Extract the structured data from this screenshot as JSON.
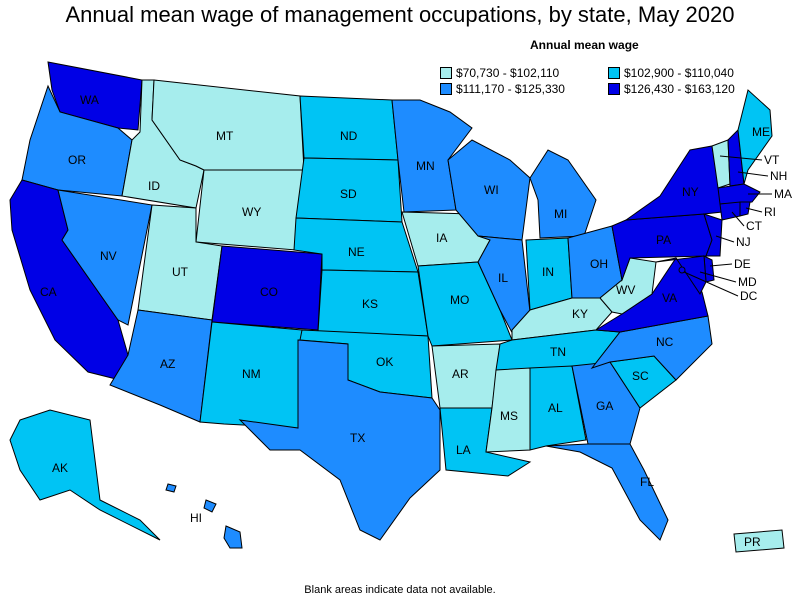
{
  "title": "Annual mean wage of management occupations, by state, May 2020",
  "legend": {
    "title": "Annual mean wage",
    "items": [
      {
        "label": "$70,730 - $102,110",
        "color": "#a6eded"
      },
      {
        "label": "$102,900 - $110,040",
        "color": "#00c4f4"
      },
      {
        "label": "$111,170 - $125,330",
        "color": "#1e8cff"
      },
      {
        "label": "$126,430 - $163,120",
        "color": "#0000e6"
      }
    ]
  },
  "footnote": "Blank areas indicate data not available.",
  "states": [
    {
      "code": "WA",
      "tier": 3
    },
    {
      "code": "OR",
      "tier": 2
    },
    {
      "code": "CA",
      "tier": 3
    },
    {
      "code": "ID",
      "tier": 0
    },
    {
      "code": "NV",
      "tier": 2
    },
    {
      "code": "MT",
      "tier": 0
    },
    {
      "code": "WY",
      "tier": 0
    },
    {
      "code": "UT",
      "tier": 0
    },
    {
      "code": "AZ",
      "tier": 2
    },
    {
      "code": "CO",
      "tier": 3
    },
    {
      "code": "NM",
      "tier": 1
    },
    {
      "code": "ND",
      "tier": 1
    },
    {
      "code": "SD",
      "tier": 1
    },
    {
      "code": "NE",
      "tier": 1
    },
    {
      "code": "KS",
      "tier": 1
    },
    {
      "code": "OK",
      "tier": 1
    },
    {
      "code": "TX",
      "tier": 2
    },
    {
      "code": "MN",
      "tier": 2
    },
    {
      "code": "IA",
      "tier": 0
    },
    {
      "code": "MO",
      "tier": 1
    },
    {
      "code": "AR",
      "tier": 0
    },
    {
      "code": "LA",
      "tier": 1
    },
    {
      "code": "WI",
      "tier": 2
    },
    {
      "code": "IL",
      "tier": 2
    },
    {
      "code": "MI",
      "tier": 2
    },
    {
      "code": "IN",
      "tier": 1
    },
    {
      "code": "OH",
      "tier": 2
    },
    {
      "code": "KY",
      "tier": 0
    },
    {
      "code": "TN",
      "tier": 1
    },
    {
      "code": "MS",
      "tier": 0
    },
    {
      "code": "AL",
      "tier": 1
    },
    {
      "code": "GA",
      "tier": 2
    },
    {
      "code": "FL",
      "tier": 2
    },
    {
      "code": "SC",
      "tier": 1
    },
    {
      "code": "NC",
      "tier": 2
    },
    {
      "code": "VA",
      "tier": 3
    },
    {
      "code": "WV",
      "tier": 0
    },
    {
      "code": "PA",
      "tier": 3
    },
    {
      "code": "NY",
      "tier": 3
    },
    {
      "code": "VT",
      "tier": 0
    },
    {
      "code": "NH",
      "tier": 3
    },
    {
      "code": "ME",
      "tier": 1
    },
    {
      "code": "MA",
      "tier": 3
    },
    {
      "code": "RI",
      "tier": 3
    },
    {
      "code": "CT",
      "tier": 3
    },
    {
      "code": "NJ",
      "tier": 3
    },
    {
      "code": "DE",
      "tier": 3
    },
    {
      "code": "MD",
      "tier": 3
    },
    {
      "code": "DC",
      "tier": 3
    },
    {
      "code": "AK",
      "tier": 1
    },
    {
      "code": "HI",
      "tier": 2
    },
    {
      "code": "PR",
      "tier": 0
    }
  ]
}
